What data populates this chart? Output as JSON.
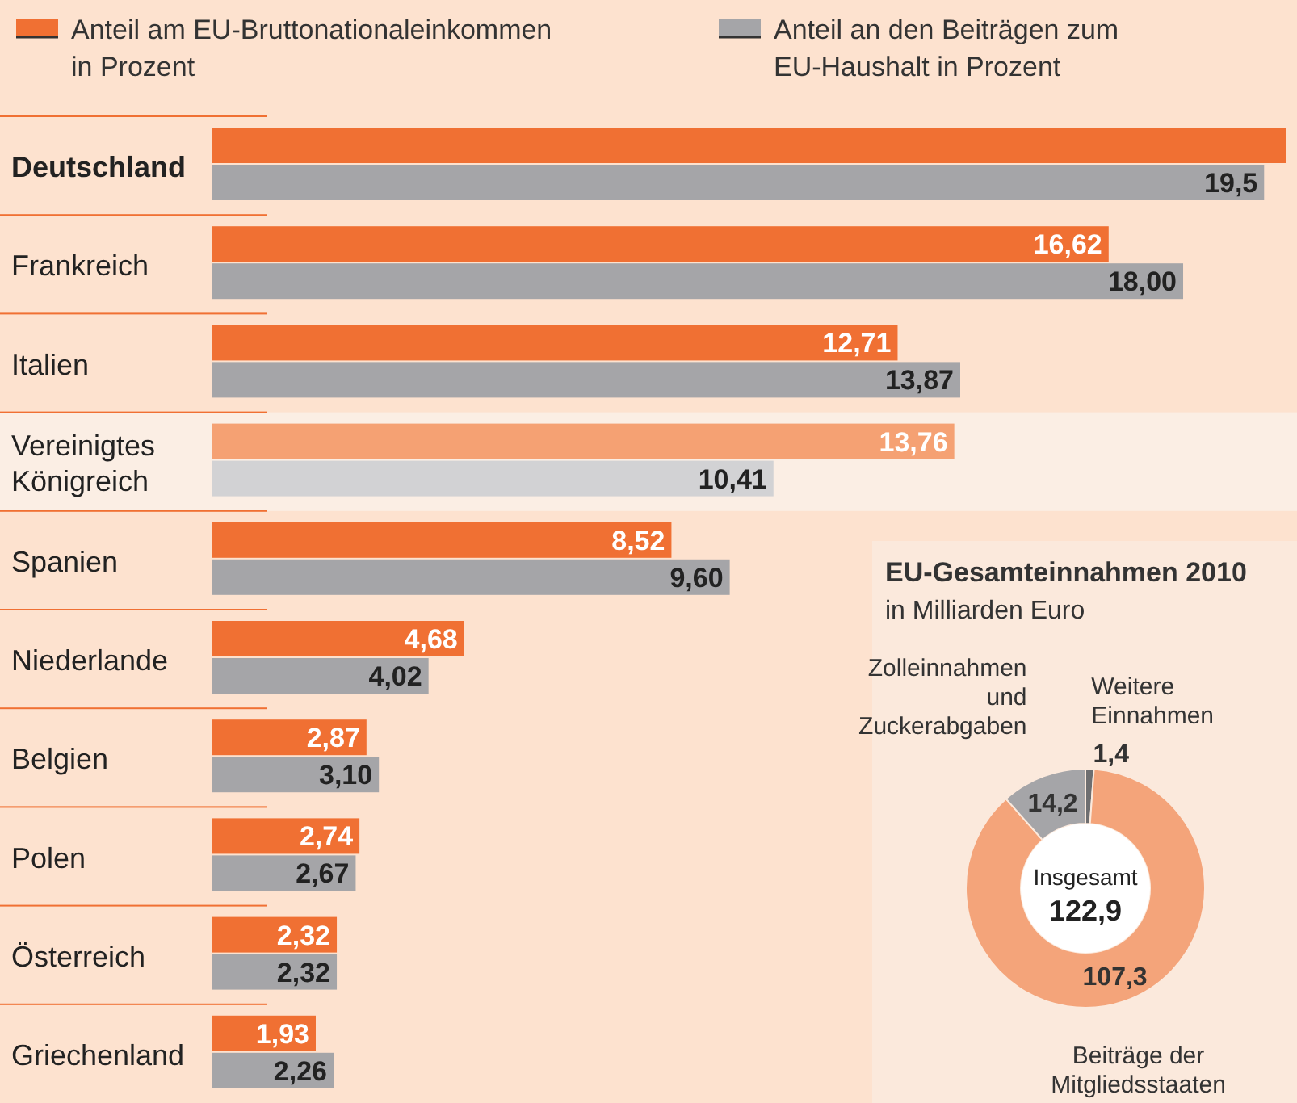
{
  "chart_data": [
    {
      "type": "bar",
      "orientation": "horizontal",
      "legend": "top",
      "categories": [
        "Deutschland",
        "Frankreich",
        "Italien",
        "Vereinigtes Königreich",
        "Spanien",
        "Niederlande",
        "Belgien",
        "Polen",
        "Österreich",
        "Griechenland"
      ],
      "series": [
        {
          "name": "Anteil am EU-Bruttonationaleinkommen in Prozent",
          "color": "#f07033",
          "colors": [
            "#f07033",
            "#f07033",
            "#f07033",
            "#f5a173",
            "#f07033",
            "#f07033",
            "#f07033",
            "#f07033",
            "#f07033",
            "#f07033"
          ],
          "values": [
            19.9,
            16.62,
            12.71,
            13.76,
            8.52,
            4.68,
            2.87,
            2.74,
            2.32,
            1.93
          ],
          "value_labels": [
            null,
            "16,62",
            "12,71",
            "13,76",
            "8,52",
            "4,68",
            "2,87",
            "2,74",
            "2,32",
            "1,93"
          ]
        },
        {
          "name": "Anteil an den Beiträgen zum EU-Haushalt in Prozent",
          "color": "#a5a5a8",
          "colors": [
            "#a5a5a8",
            "#a5a5a8",
            "#a5a5a8",
            "#d2d2d4",
            "#a5a5a8",
            "#a5a5a8",
            "#a5a5a8",
            "#a5a5a8",
            "#a5a5a8",
            "#a5a5a8"
          ],
          "values": [
            19.5,
            18.0,
            13.87,
            10.41,
            9.6,
            4.02,
            3.1,
            2.67,
            2.32,
            2.26
          ],
          "value_labels": [
            "19,5",
            "18,00",
            "13,87",
            "10,41",
            "9,60",
            "4,02",
            "3,10",
            "2,67",
            "2,32",
            "2,26"
          ]
        }
      ]
    },
    {
      "type": "donut",
      "title": "EU-Gesamteinnahmen 2010",
      "subtitle": "in Milliarden Euro",
      "categories": [
        "Weitere Einnahmen",
        "Beiträge der Mitgliedsstaaten",
        "Zolleinnahmen und Zuckerabgaben"
      ],
      "values": [
        1.4,
        107.3,
        14.2
      ],
      "value_labels": [
        "1,4",
        "107,3",
        "14,2"
      ],
      "colors": [
        "#6e6e70",
        "#f4a47a",
        "#a5a5a8"
      ],
      "annotations": [
        "Insgesamt",
        "122,9"
      ]
    }
  ]
}
